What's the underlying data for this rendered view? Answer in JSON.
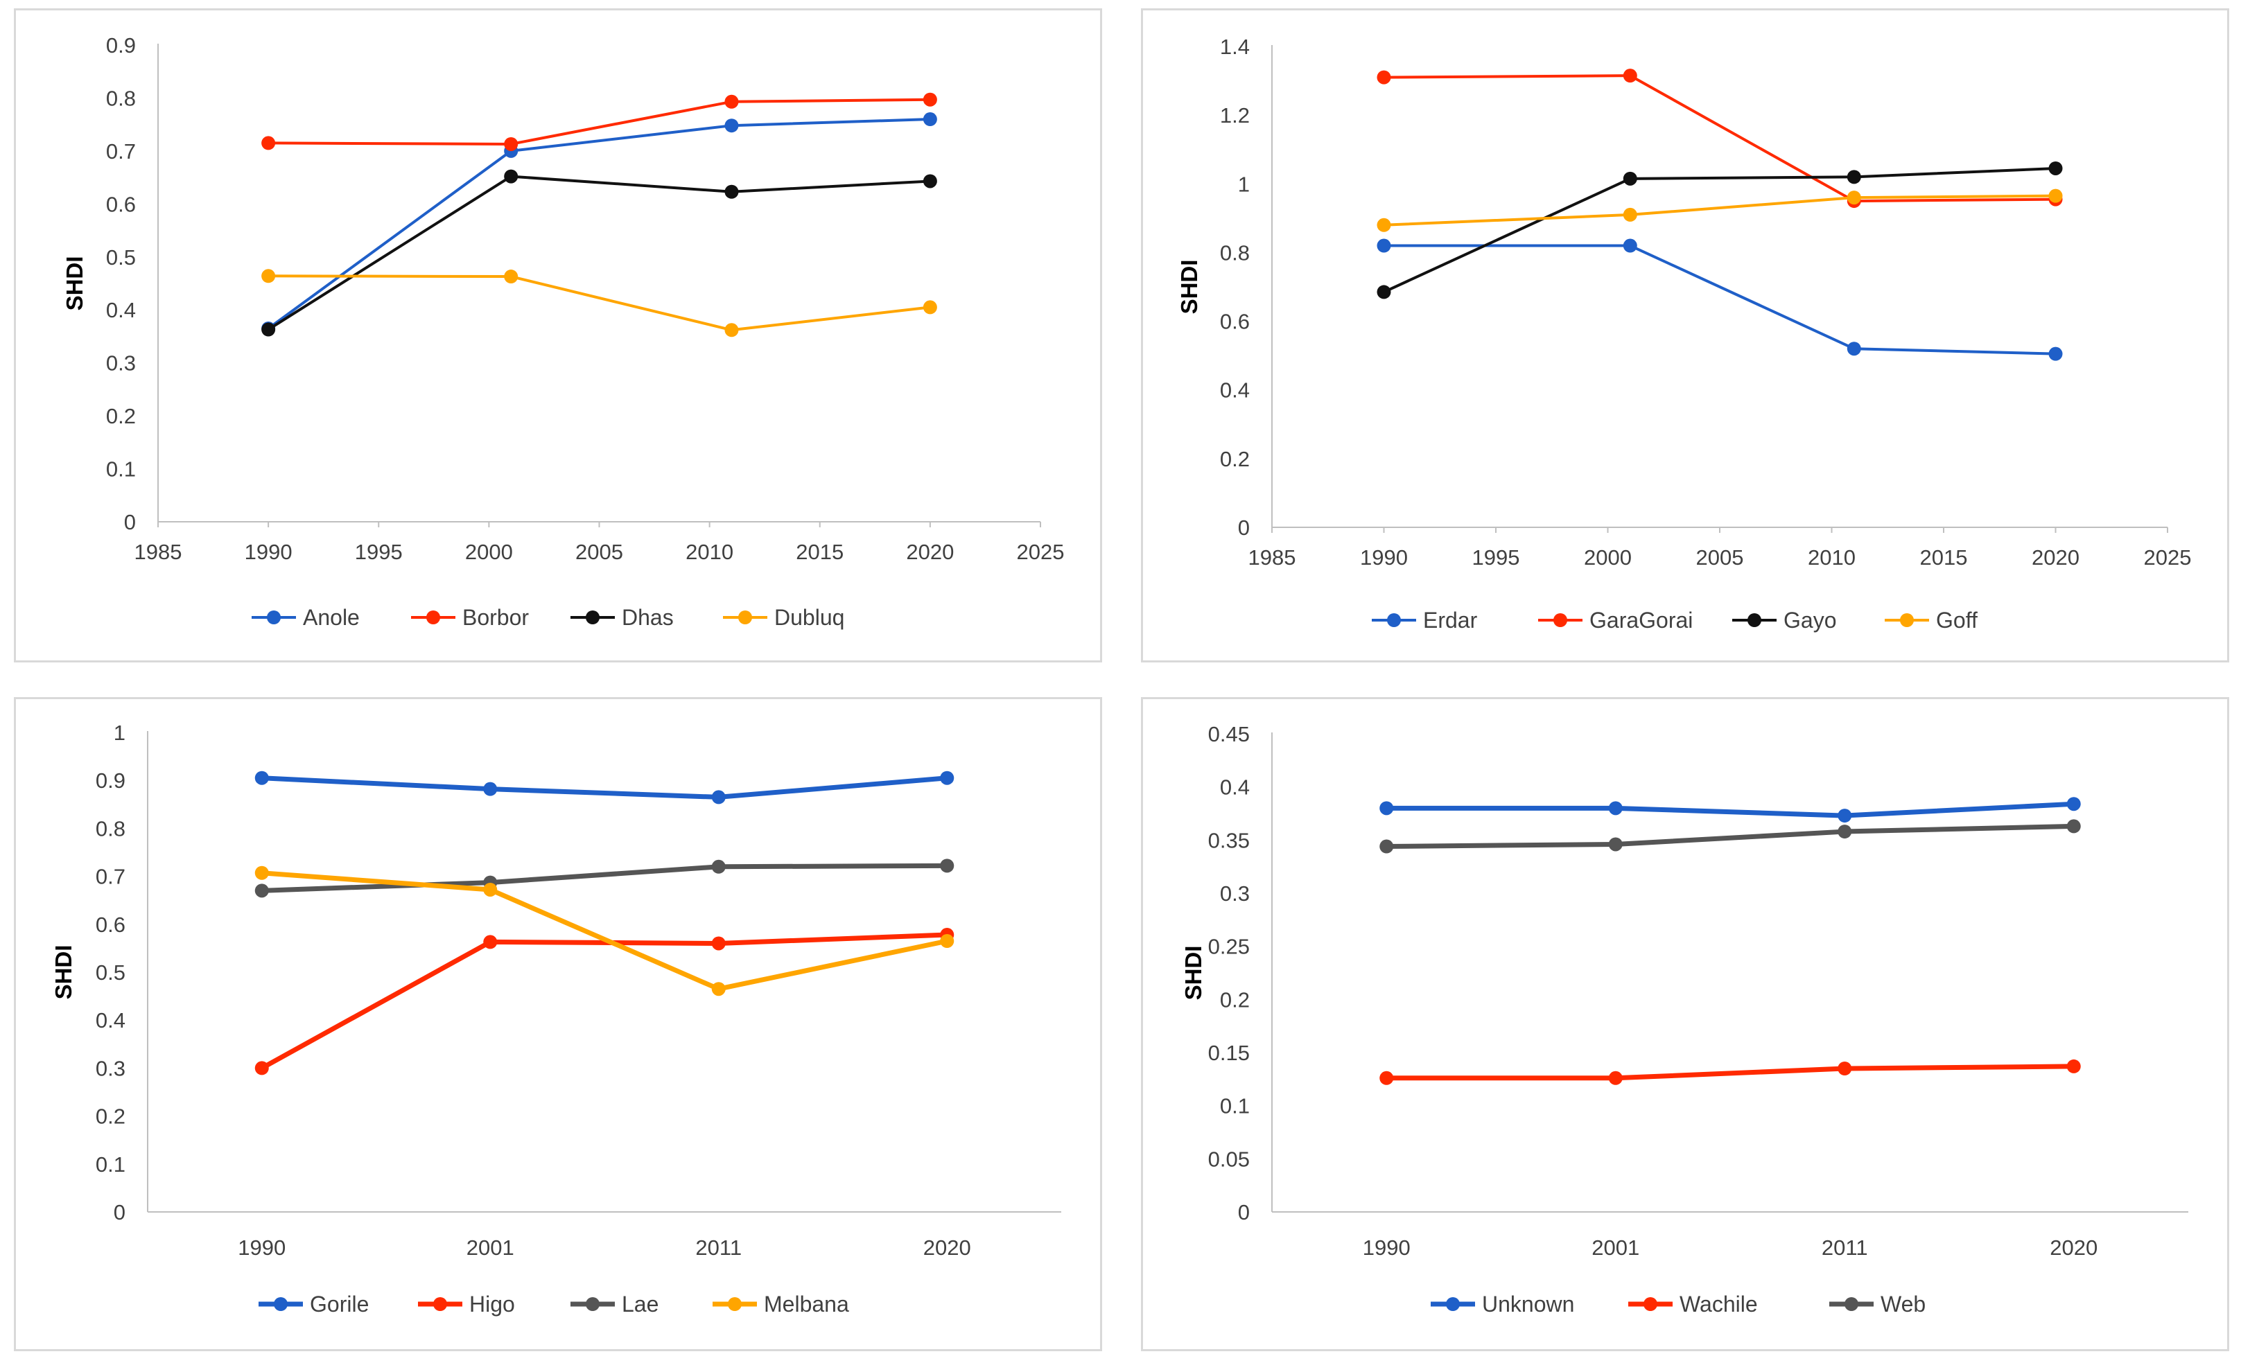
{
  "chart_data": [
    {
      "type": "line",
      "ylabel": "SHDI",
      "xlabel": "",
      "x_axis": "numeric",
      "xlim": [
        1985,
        2025
      ],
      "xticks": [
        1985,
        1990,
        1995,
        2000,
        2005,
        2010,
        2015,
        2020,
        2025
      ],
      "ylim": [
        0,
        0.9
      ],
      "yticks": [
        "0",
        "0.1",
        "0.2",
        "0.3",
        "0.4",
        "0.5",
        "0.6",
        "0.7",
        "0.8",
        "0.9"
      ],
      "x": [
        1990,
        2001,
        2011,
        2020
      ],
      "series": [
        {
          "name": "Anole",
          "color": "#1f5fc8",
          "values": [
            0.365,
            0.7,
            0.748,
            0.76
          ]
        },
        {
          "name": "Borbor",
          "color": "#ff2a00",
          "values": [
            0.715,
            0.713,
            0.793,
            0.797
          ]
        },
        {
          "name": "Dhas",
          "color": "#111111",
          "values": [
            0.363,
            0.652,
            0.623,
            0.643
          ]
        },
        {
          "name": "Dubluq",
          "color": "#ffa500",
          "values": [
            0.464,
            0.463,
            0.362,
            0.405
          ]
        }
      ],
      "legend_position": "bottom"
    },
    {
      "type": "line",
      "ylabel": "SHDI",
      "xlabel": "",
      "x_axis": "numeric",
      "xlim": [
        1985,
        2025
      ],
      "xticks": [
        1985,
        1990,
        1995,
        2000,
        2005,
        2010,
        2015,
        2020,
        2025
      ],
      "ylim": [
        0,
        1.4
      ],
      "yticks": [
        "0",
        "0.2",
        "0.4",
        "0.6",
        "0.8",
        "1",
        "1.2",
        "1.4"
      ],
      "x": [
        1990,
        2001,
        2011,
        2020
      ],
      "series": [
        {
          "name": "Erdar",
          "color": "#1f5fc8",
          "values": [
            0.82,
            0.82,
            0.52,
            0.505
          ]
        },
        {
          "name": "GaraGorai",
          "color": "#ff2a00",
          "values": [
            1.31,
            1.315,
            0.95,
            0.955
          ]
        },
        {
          "name": "Gayo",
          "color": "#111111",
          "values": [
            0.685,
            1.015,
            1.02,
            1.045
          ]
        },
        {
          "name": "Goff",
          "color": "#ffa500",
          "values": [
            0.88,
            0.91,
            0.96,
            0.965
          ]
        }
      ],
      "legend_position": "bottom"
    },
    {
      "type": "line",
      "ylabel": "SHDI",
      "xlabel": "",
      "x_axis": "category",
      "categories": [
        "1990",
        "2001",
        "2011",
        "2020"
      ],
      "ylim": [
        0,
        1
      ],
      "yticks": [
        "0",
        "0.1",
        "0.2",
        "0.3",
        "0.4",
        "0.5",
        "0.6",
        "0.7",
        "0.8",
        "0.9",
        "1"
      ],
      "series": [
        {
          "name": "Gorile",
          "color": "#1f5fc8",
          "values": [
            0.905,
            0.882,
            0.865,
            0.905
          ]
        },
        {
          "name": "Higo",
          "color": "#ff2a00",
          "values": [
            0.3,
            0.563,
            0.56,
            0.578
          ]
        },
        {
          "name": "Lae",
          "color": "#555555",
          "values": [
            0.67,
            0.687,
            0.72,
            0.722
          ]
        },
        {
          "name": "Melbana",
          "color": "#ffa500",
          "values": [
            0.707,
            0.672,
            0.465,
            0.565
          ]
        }
      ],
      "legend_position": "bottom"
    },
    {
      "type": "line",
      "ylabel": "SHDI",
      "xlabel": "",
      "x_axis": "category",
      "categories": [
        "1990",
        "2001",
        "2011",
        "2020"
      ],
      "ylim": [
        0,
        0.45
      ],
      "yticks": [
        "0",
        "0.05",
        "0.1",
        "0.15",
        "0.2",
        "0.25",
        "0.3",
        "0.35",
        "0.4",
        "0.45"
      ],
      "series": [
        {
          "name": "Unknown",
          "color": "#1f5fc8",
          "values": [
            0.38,
            0.38,
            0.373,
            0.384
          ]
        },
        {
          "name": "Wachile",
          "color": "#ff2a00",
          "values": [
            0.126,
            0.126,
            0.135,
            0.137
          ]
        },
        {
          "name": "Web",
          "color": "#555555",
          "values": [
            0.344,
            0.346,
            0.358,
            0.363
          ]
        }
      ],
      "legend_position": "bottom"
    }
  ]
}
